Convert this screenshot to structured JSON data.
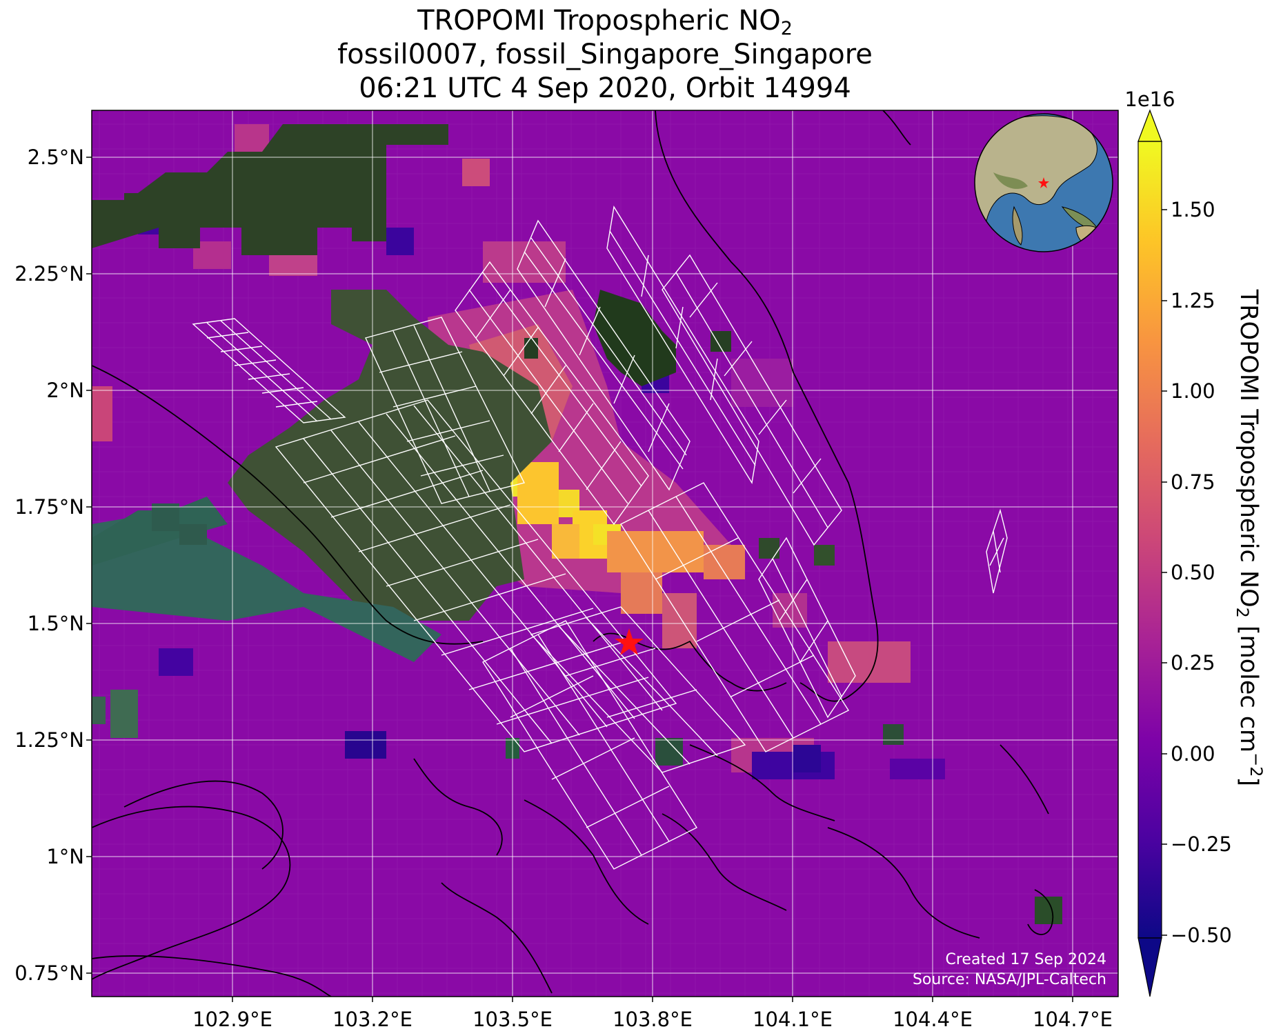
{
  "title": {
    "line1_prefix": "TROPOMI Tropospheric NO",
    "line1_sub": "2",
    "line2": "fossil0007, fossil_Singapore_Singapore",
    "line3": "06:21 UTC 4 Sep 2020, Orbit 14994"
  },
  "map": {
    "lon_ticks": [
      "102.9°E",
      "103.2°E",
      "103.5°E",
      "103.8°E",
      "104.1°E",
      "104.4°E",
      "104.7°E"
    ],
    "lat_ticks": [
      "2.5°N",
      "2.25°N",
      "2°N",
      "1.75°N",
      "1.5°N",
      "1.25°N",
      "1°N",
      "0.75°N"
    ],
    "target_marker": "red-star",
    "credits": {
      "created": "Created 17 Sep 2024",
      "source": "Source: NASA/JPL-Caltech"
    },
    "inset_globe": {
      "marker": "red-star",
      "description_icon": "globe-icon"
    }
  },
  "colorbar": {
    "exponent_label": "1e16",
    "ticks": [
      "1.50",
      "1.25",
      "1.00",
      "0.75",
      "0.50",
      "0.25",
      "0.00",
      "−0.25",
      "−0.50"
    ],
    "label_prefix": "TROPOMI Tropospheric NO",
    "label_sub": "2",
    "label_mid": " [molec cm",
    "label_sup": "−2",
    "label_suffix": "]",
    "colormap": "plasma",
    "extend": "both",
    "range": [
      -0.55,
      1.65
    ],
    "colors": {
      "low": "#0d0887",
      "mid": "#9c179e",
      "high": "#f0f921"
    }
  }
}
